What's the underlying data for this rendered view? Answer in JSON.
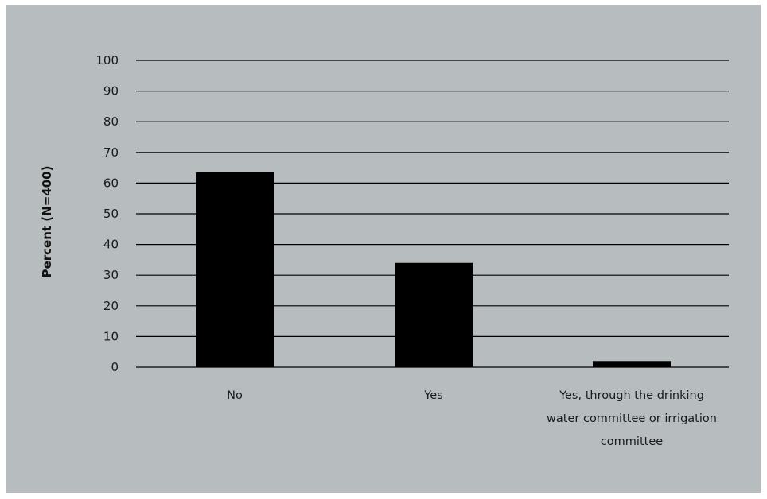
{
  "chart_data": {
    "type": "bar",
    "categories": [
      "No",
      "Yes",
      "Yes, through the drinking water committee or irrigation committee"
    ],
    "category_label_lines": [
      [
        "No"
      ],
      [
        "Yes"
      ],
      [
        "Yes, through the drinking",
        "water committee or irrigation",
        "committee"
      ]
    ],
    "values": [
      63.5,
      34,
      2
    ],
    "ylabel": "Percent (N=400)",
    "xlabel": "",
    "ylim": [
      0,
      100
    ],
    "yticks": [
      0,
      10,
      20,
      30,
      40,
      50,
      60,
      70,
      80,
      90,
      100
    ],
    "grid": true,
    "colors": {
      "background": "#b7bcbe",
      "bar": "#000000",
      "grid": "#000000"
    }
  }
}
